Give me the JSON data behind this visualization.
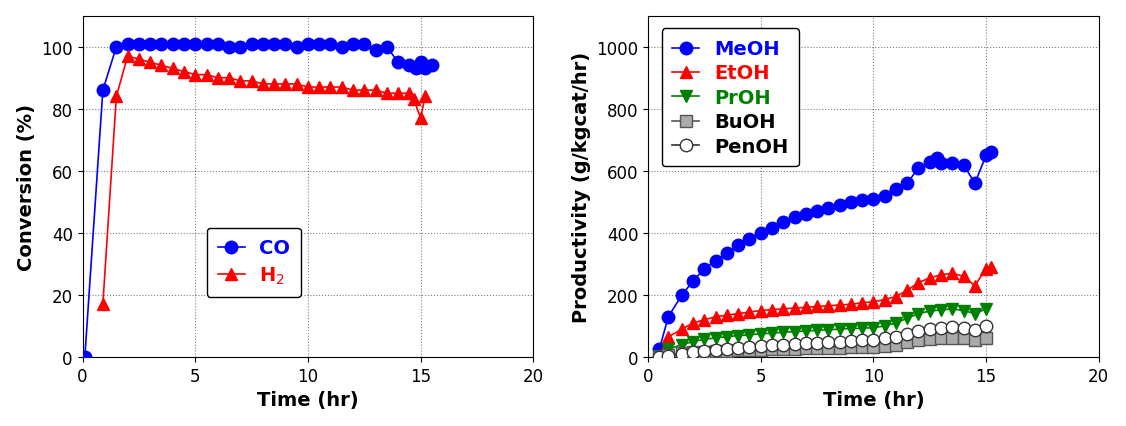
{
  "left": {
    "xlabel": "Time (hr)",
    "ylabel": "Conversion (%)",
    "xlim": [
      0,
      20
    ],
    "ylim": [
      0,
      110
    ],
    "yticks": [
      0,
      20,
      40,
      60,
      80,
      100
    ],
    "xticks": [
      0,
      5,
      10,
      15,
      20
    ],
    "CO_time": [
      0.1,
      0.9,
      1.5,
      2.0,
      2.5,
      3.0,
      3.5,
      4.0,
      4.5,
      5.0,
      5.5,
      6.0,
      6.5,
      7.0,
      7.5,
      8.0,
      8.5,
      9.0,
      9.5,
      10.0,
      10.5,
      11.0,
      11.5,
      12.0,
      12.5,
      13.0,
      13.5,
      14.0,
      14.5,
      14.8,
      15.0,
      15.2,
      15.5
    ],
    "CO_conv": [
      0,
      86,
      100,
      101,
      101,
      101,
      101,
      101,
      101,
      101,
      101,
      101,
      100,
      100,
      101,
      101,
      101,
      101,
      100,
      101,
      101,
      101,
      100,
      101,
      101,
      99,
      100,
      95,
      94,
      93,
      95,
      93,
      94
    ],
    "H2_time": [
      0.9,
      1.5,
      2.0,
      2.5,
      3.0,
      3.5,
      4.0,
      4.5,
      5.0,
      5.5,
      6.0,
      6.5,
      7.0,
      7.5,
      8.0,
      8.5,
      9.0,
      9.5,
      10.0,
      10.5,
      11.0,
      11.5,
      12.0,
      12.5,
      13.0,
      13.5,
      14.0,
      14.5,
      14.7,
      15.0,
      15.2
    ],
    "H2_conv": [
      17,
      84,
      97,
      96,
      95,
      94,
      93,
      92,
      91,
      91,
      90,
      90,
      89,
      89,
      88,
      88,
      88,
      88,
      87,
      87,
      87,
      87,
      86,
      86,
      86,
      85,
      85,
      85,
      83,
      77,
      84
    ]
  },
  "right": {
    "xlabel": "Time (hr)",
    "ylabel": "Productivity (g/kgcat/hr)",
    "xlim": [
      0,
      20
    ],
    "ylim": [
      0,
      1100
    ],
    "yticks": [
      0,
      200,
      400,
      600,
      800,
      1000
    ],
    "xticks": [
      0,
      5,
      10,
      15,
      20
    ],
    "MeOH_time": [
      0.5,
      0.9,
      1.5,
      2.0,
      2.5,
      3.0,
      3.5,
      4.0,
      4.5,
      5.0,
      5.5,
      6.0,
      6.5,
      7.0,
      7.5,
      8.0,
      8.5,
      9.0,
      9.5,
      10.0,
      10.5,
      11.0,
      11.5,
      12.0,
      12.5,
      12.8,
      13.0,
      13.5,
      14.0,
      14.5,
      15.0,
      15.2
    ],
    "MeOH_val": [
      25,
      130,
      200,
      245,
      285,
      310,
      335,
      360,
      380,
      400,
      415,
      435,
      450,
      460,
      470,
      480,
      490,
      500,
      505,
      510,
      520,
      540,
      560,
      610,
      630,
      640,
      625,
      625,
      620,
      560,
      650,
      660
    ],
    "EtOH_time": [
      0.5,
      0.9,
      1.5,
      2.0,
      2.5,
      3.0,
      3.5,
      4.0,
      4.5,
      5.0,
      5.5,
      6.0,
      6.5,
      7.0,
      7.5,
      8.0,
      8.5,
      9.0,
      9.5,
      10.0,
      10.5,
      11.0,
      11.5,
      12.0,
      12.5,
      13.0,
      13.5,
      14.0,
      14.5,
      15.0,
      15.2
    ],
    "EtOH_val": [
      5,
      65,
      90,
      110,
      120,
      130,
      135,
      140,
      145,
      150,
      153,
      155,
      158,
      160,
      163,
      165,
      168,
      170,
      175,
      178,
      185,
      195,
      215,
      240,
      255,
      265,
      270,
      260,
      230,
      285,
      290
    ],
    "PrOH_time": [
      0.5,
      0.9,
      1.5,
      2.0,
      2.5,
      3.0,
      3.5,
      4.0,
      4.5,
      5.0,
      5.5,
      6.0,
      6.5,
      7.0,
      7.5,
      8.0,
      8.5,
      9.0,
      9.5,
      10.0,
      10.5,
      11.0,
      11.5,
      12.0,
      12.5,
      13.0,
      13.5,
      14.0,
      14.5,
      15.0
    ],
    "PrOH_val": [
      2,
      25,
      40,
      50,
      57,
      62,
      66,
      69,
      72,
      75,
      77,
      80,
      82,
      84,
      86,
      88,
      90,
      92,
      93,
      95,
      100,
      110,
      125,
      140,
      148,
      152,
      155,
      150,
      140,
      155
    ],
    "BuOH_time": [
      0.5,
      0.9,
      1.5,
      2.0,
      2.5,
      3.0,
      3.5,
      4.0,
      4.5,
      5.0,
      5.5,
      6.0,
      6.5,
      7.0,
      7.5,
      8.0,
      8.5,
      9.0,
      9.5,
      10.0,
      10.5,
      11.0,
      11.5,
      12.0,
      12.5,
      13.0,
      13.5,
      14.0,
      14.5,
      15.0
    ],
    "BuOH_val": [
      1,
      8,
      12,
      15,
      17,
      19,
      20,
      22,
      23,
      24,
      25,
      26,
      27,
      28,
      29,
      30,
      30,
      31,
      32,
      33,
      35,
      40,
      48,
      55,
      58,
      60,
      62,
      60,
      55,
      62
    ],
    "PenOH_time": [
      0.5,
      0.9,
      1.5,
      2.0,
      2.5,
      3.0,
      3.5,
      4.0,
      4.5,
      5.0,
      5.5,
      6.0,
      6.5,
      7.0,
      7.5,
      8.0,
      8.5,
      9.0,
      9.5,
      10.0,
      10.5,
      11.0,
      11.5,
      12.0,
      12.5,
      13.0,
      13.5,
      14.0,
      14.5,
      15.0
    ],
    "PenOH_val": [
      0,
      5,
      10,
      15,
      20,
      24,
      27,
      30,
      33,
      36,
      38,
      40,
      42,
      44,
      46,
      48,
      50,
      52,
      54,
      56,
      60,
      66,
      75,
      85,
      90,
      95,
      98,
      95,
      88,
      100
    ]
  },
  "colors": {
    "CO": "#0000FF",
    "H2": "#FF0000",
    "MeOH": "#0000FF",
    "EtOH": "#FF0000",
    "PrOH": "#008000",
    "BuOH_face": "#AAAAAA",
    "BuOH_edge": "#555555",
    "PenOH_face": "#FFFFFF",
    "PenOH_edge": "#333333"
  },
  "background": "#FFFFFF",
  "marker_size": 9,
  "line_width": 1.2,
  "font_size_label": 14,
  "font_size_tick": 12,
  "font_size_legend": 13
}
